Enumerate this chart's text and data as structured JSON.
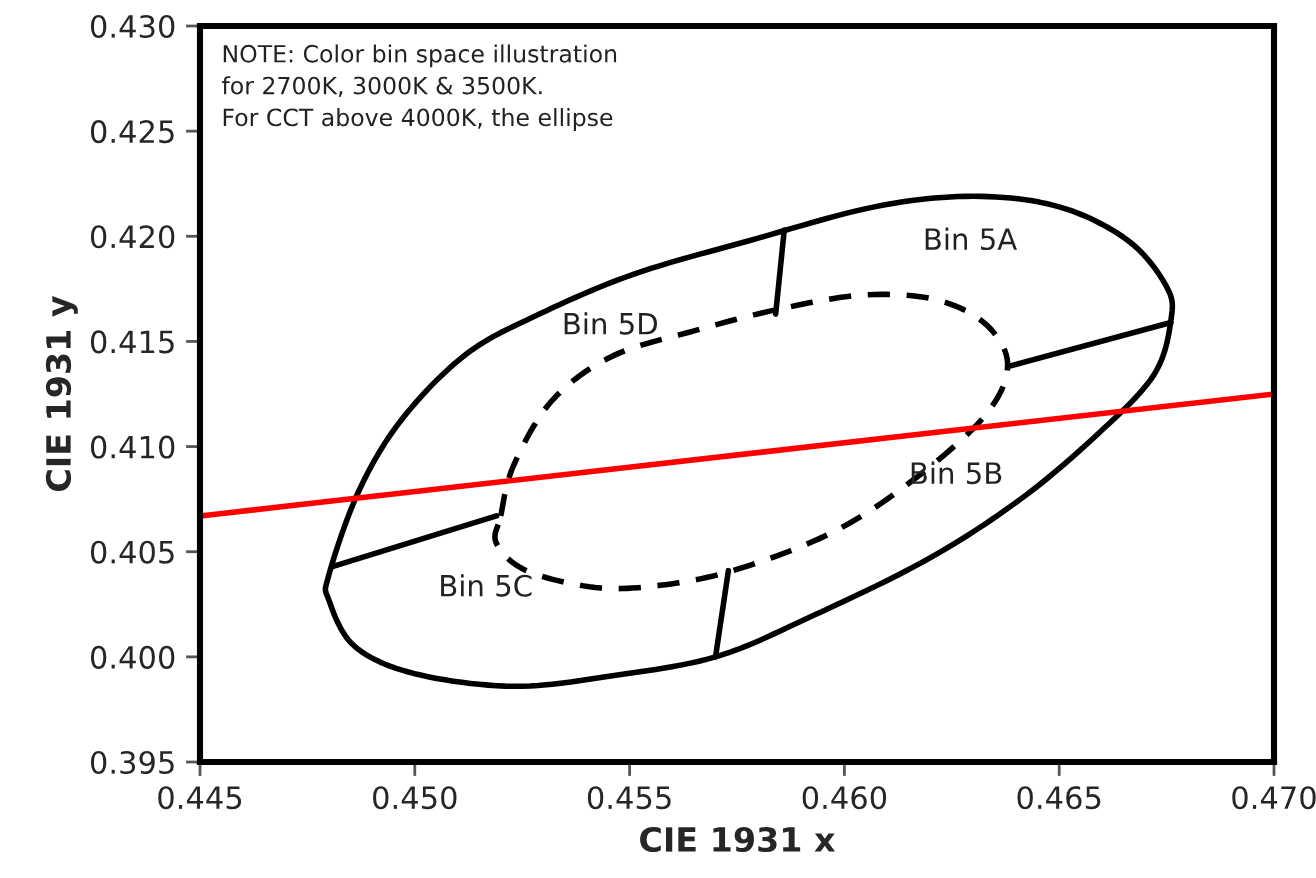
{
  "chart_data": {
    "type": "line",
    "xlabel": "CIE 1931 x",
    "ylabel": "CIE 1931 y",
    "xlim": [
      0.445,
      0.47
    ],
    "xticks": [
      {
        "value": 0.445,
        "label": "0.445"
      },
      {
        "value": 0.45,
        "label": "0.450"
      },
      {
        "value": 0.455,
        "label": "0.455"
      },
      {
        "value": 0.46,
        "label": "0.460"
      },
      {
        "value": 0.465,
        "label": "0.465"
      },
      {
        "value": 0.47,
        "label": "0.470"
      }
    ],
    "ylim": [
      0.395,
      0.43
    ],
    "yticks": [
      {
        "value": 0.395,
        "label": "0.395"
      },
      {
        "value": 0.4,
        "label": "0.400"
      },
      {
        "value": 0.405,
        "label": "0.405"
      },
      {
        "value": 0.41,
        "label": "0.410"
      },
      {
        "value": 0.415,
        "label": "0.415"
      },
      {
        "value": 0.42,
        "label": "0.420"
      },
      {
        "value": 0.425,
        "label": "0.425"
      },
      {
        "value": 0.43,
        "label": "0.430"
      }
    ],
    "grid": false,
    "legend": false,
    "marker": "none",
    "series": [
      {
        "color": "#ff0000",
        "line_style": "solid",
        "x": [
          0.445,
          0.47
        ],
        "values": [
          0.4067,
          0.4125
        ]
      }
    ],
    "annotations": [
      "NOTE: Color bin space illustration\nfor 2700K, 3000K & 3500K.\nFor CCT above 4000K, the ellipse",
      "Bin 5A",
      "Bin 5D",
      "Bin 5B",
      "Bin 5C"
    ]
  }
}
